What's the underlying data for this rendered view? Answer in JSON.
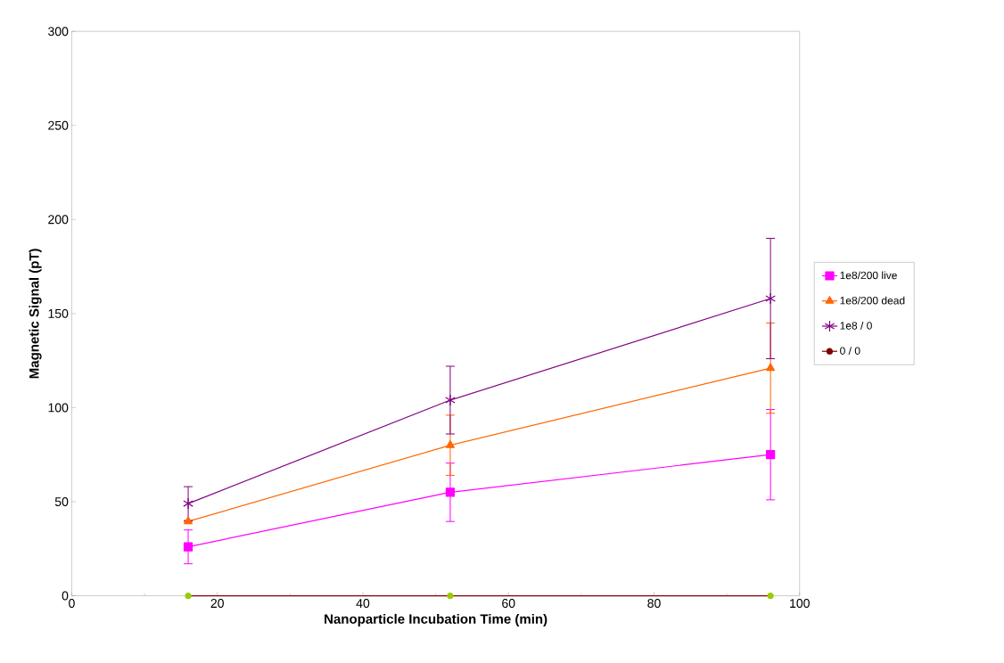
{
  "chart_data": {
    "type": "line",
    "xlabel": "Nanoparticle Incubation Time (min)",
    "ylabel": "Magnetic Signal (pT)",
    "x": [
      16,
      52,
      96
    ],
    "xlim": [
      0,
      100
    ],
    "xticks": [
      0,
      20,
      40,
      60,
      80,
      100
    ],
    "ylim": [
      0,
      300
    ],
    "yticks": [
      0,
      50,
      100,
      150,
      200,
      250,
      300
    ],
    "grid": false,
    "legend": "right",
    "series": [
      {
        "name": "1e8/200 live",
        "color": "#ff00ff",
        "marker": "square",
        "values": [
          26,
          55,
          75
        ],
        "errors": [
          9,
          15.5,
          24
        ]
      },
      {
        "name": "1e8/200 dead",
        "color": "#ff6600",
        "marker": "triangle",
        "values": [
          39.5,
          80,
          121
        ],
        "errors": [
          null,
          16,
          24
        ]
      },
      {
        "name": "1e8 / 0",
        "color": "#800080",
        "marker": "cross",
        "values": [
          49,
          104,
          158
        ],
        "errors": [
          9,
          18,
          32
        ]
      },
      {
        "name": "0 / 0",
        "color": "#800000",
        "colors": [
          "#99cc00",
          "#99cc00",
          "#99cc00"
        ],
        "marker": "circle",
        "values": [
          0,
          0,
          0
        ]
      }
    ]
  }
}
